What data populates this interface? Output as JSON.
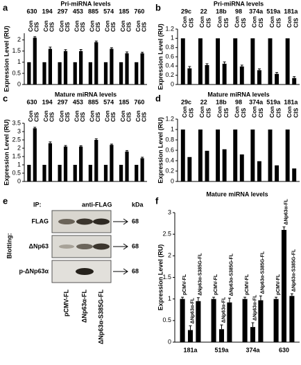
{
  "chart_data": [
    {
      "type": "bar",
      "panel": "a",
      "title": "Pri-miRNA levels",
      "y_label": "Expression Level (RU)",
      "categories": [
        "630",
        "194",
        "297",
        "453",
        "885",
        "574",
        "185",
        "760"
      ],
      "series": [
        {
          "name": "Con",
          "color": "#000000",
          "values": [
            1,
            1,
            1,
            1,
            1,
            1,
            1,
            1
          ]
        },
        {
          "name": "CIS",
          "color": "#000000",
          "values": [
            2.1,
            1.6,
            1.5,
            1.5,
            1.9,
            1.6,
            1.4,
            1.4
          ],
          "errors": [
            0.05,
            0.08,
            0.06,
            0.07,
            0.05,
            0.05,
            0.06,
            0.05
          ]
        }
      ],
      "ylim": [
        0,
        2.3
      ],
      "yticks": [
        0,
        0.5,
        1,
        1.5,
        2
      ]
    },
    {
      "type": "bar",
      "panel": "b",
      "title": "Pri-miRNA levels",
      "y_label": "Expression Level (RU)",
      "categories": [
        "29c",
        "22",
        "18b",
        "98",
        "374a",
        "519a",
        "181a"
      ],
      "series": [
        {
          "name": "Con",
          "color": "#000000",
          "values": [
            1,
            1,
            1,
            1,
            1,
            1,
            1
          ]
        },
        {
          "name": "CIS",
          "color": "#000000",
          "values": [
            0.35,
            0.42,
            0.45,
            0.39,
            0.31,
            0.23,
            0.14
          ],
          "errors": [
            0.04,
            0.03,
            0.04,
            0.03,
            0.03,
            0.03,
            0.03
          ]
        }
      ],
      "ylim": [
        0,
        1.2
      ],
      "yticks": [
        0,
        0.2,
        0.4,
        0.6,
        0.8,
        1,
        1.2
      ]
    },
    {
      "type": "bar",
      "panel": "c",
      "title": "Mature miRNA levels",
      "y_label": "Expression Level (RU)",
      "categories": [
        "630",
        "194",
        "297",
        "453",
        "885",
        "574",
        "185",
        "760"
      ],
      "series": [
        {
          "name": "Con",
          "color": "#000000",
          "values": [
            1,
            1,
            1,
            1,
            1,
            1,
            1,
            1
          ]
        },
        {
          "name": "CIS",
          "color": "#000000",
          "values": [
            3.2,
            2.3,
            2.1,
            2.1,
            2.5,
            2.2,
            1.8,
            1.4
          ],
          "errors": [
            0.06,
            0.08,
            0.06,
            0.05,
            0.07,
            0.05,
            0.06,
            0.06
          ]
        }
      ],
      "ylim": [
        0,
        3.5
      ],
      "yticks": [
        0,
        0.5,
        1,
        1.5,
        2,
        2.5,
        3,
        3.5
      ]
    },
    {
      "type": "bar",
      "panel": "d",
      "title": "Mature miRNA levels",
      "y_label": "Expression Level (RU)",
      "categories": [
        "29c",
        "22",
        "18b",
        "98",
        "374a",
        "519a",
        "181a"
      ],
      "series": [
        {
          "name": "Con",
          "color": "#000000",
          "values": [
            1,
            1,
            1,
            1,
            1,
            1,
            1
          ]
        },
        {
          "name": "CIS",
          "color": "#000000",
          "values": [
            0.47,
            0.59,
            0.62,
            0.52,
            0.39,
            0.31,
            0.25
          ]
        }
      ],
      "ylim": [
        0,
        1.2
      ],
      "yticks": [
        0,
        0.2,
        0.4,
        0.6,
        0.8,
        1,
        1.2
      ]
    },
    {
      "type": "bar",
      "panel": "f",
      "title": "Mature miRNA levels",
      "y_label": "Expression Level (RU)",
      "categories": [
        "181a",
        "519a",
        "374a",
        "630"
      ],
      "series": [
        {
          "name": "pCMV-FL",
          "color": "#000000",
          "values": [
            1,
            1,
            1,
            1
          ],
          "errors": [
            0.04,
            0.04,
            0.04,
            0.04
          ]
        },
        {
          "name": "ΔNp63α-FL",
          "color": "#000000",
          "values": [
            0.28,
            0.3,
            0.35,
            2.6
          ],
          "errors": [
            0.1,
            0.1,
            0.1,
            0.07
          ]
        },
        {
          "name": "ΔNp63α-S385G-FL",
          "color": "#000000",
          "values": [
            0.95,
            0.92,
            0.97,
            1.07
          ],
          "errors": [
            0.08,
            0.1,
            0.1,
            0.05
          ]
        }
      ],
      "ylim": [
        0,
        3
      ],
      "yticks": [
        0,
        0.5,
        1,
        1.5,
        2,
        2.5,
        3
      ]
    }
  ],
  "blot": {
    "panel": "e",
    "ip_label": "IP:",
    "ip_antibody": "anti-FLAG",
    "kda_label": "kDa",
    "blotting_label": "Blotting:",
    "rows": [
      {
        "label": "FLAG",
        "kda": 68
      },
      {
        "label": "ΔNp63",
        "kda": 68
      },
      {
        "label": "p-ΔNp63α",
        "kda": 68
      }
    ],
    "lanes": [
      "pCMV-FL",
      "ΔNp63α-FL",
      "ΔNp63α-S385G-FL"
    ]
  }
}
